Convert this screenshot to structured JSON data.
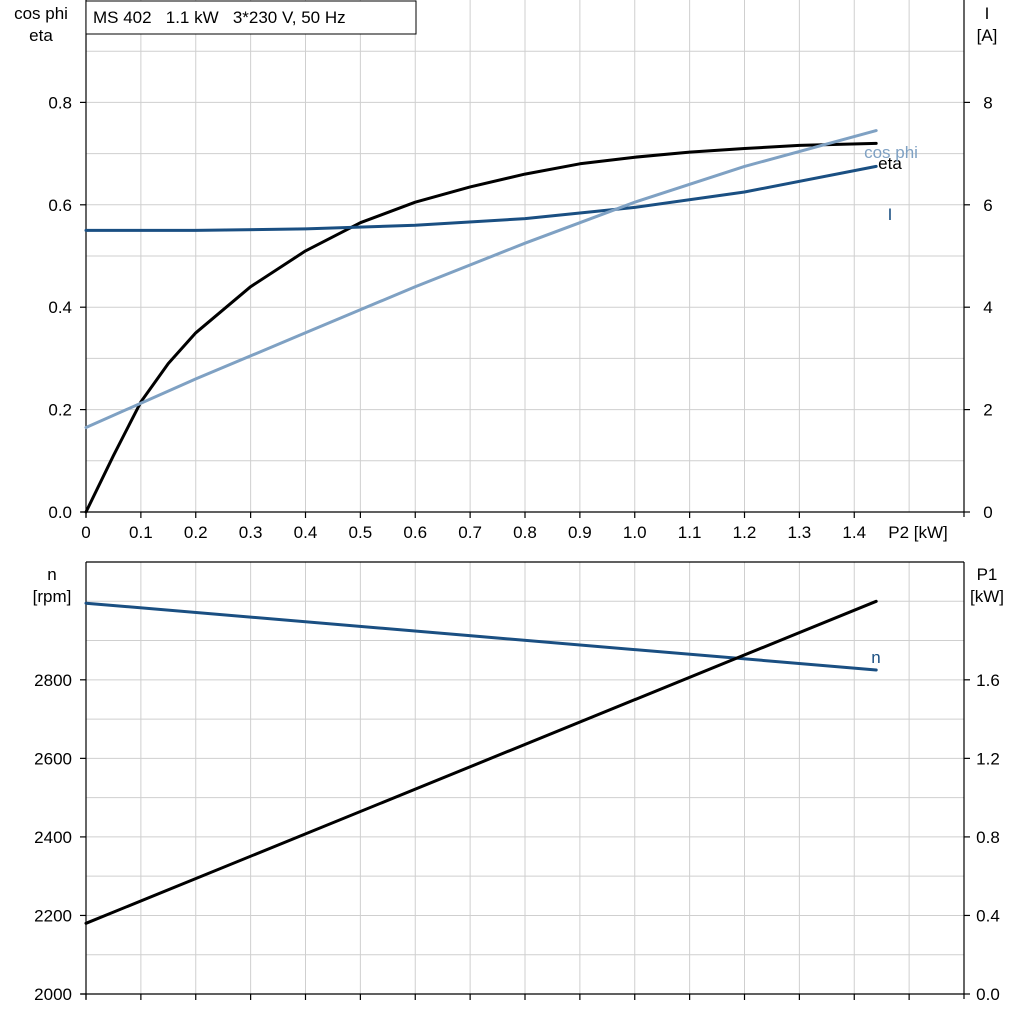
{
  "title_box": "MS 402   1.1 kW   3*230 V, 50 Hz",
  "colors": {
    "eta": "#000000",
    "I": "#1a4f82",
    "cos_phi": "#7fa1c3",
    "n": "#1a4f82",
    "P1": "#000000",
    "grid": "#cfcfcf"
  },
  "chart_data": [
    {
      "type": "line",
      "title": "MS 402   1.1 kW   3*230 V, 50 Hz",
      "xlabel": "P2 [kW]",
      "xlim": [
        0,
        1.6
      ],
      "x_ticks": [
        "0",
        "0.1",
        "0.2",
        "0.3",
        "0.4",
        "0.5",
        "0.6",
        "0.7",
        "0.8",
        "0.9",
        "1.0",
        "1.1",
        "1.2",
        "1.3",
        "1.4"
      ],
      "ylabel_left": [
        "cos phi",
        "eta"
      ],
      "ylim_left": [
        0,
        1.0
      ],
      "y_ticks_left": [
        "0.0",
        "0.2",
        "0.4",
        "0.6",
        "0.8"
      ],
      "ylabel_right": [
        "I",
        "[A]"
      ],
      "ylim_right": [
        0,
        10
      ],
      "y_ticks_right": [
        "0",
        "2",
        "4",
        "6",
        "8"
      ],
      "grid": true,
      "series": [
        {
          "name": "eta",
          "axis": "left",
          "x": [
            0,
            0.05,
            0.1,
            0.15,
            0.2,
            0.3,
            0.4,
            0.5,
            0.6,
            0.7,
            0.8,
            0.9,
            1.0,
            1.1,
            1.2,
            1.3,
            1.44
          ],
          "y": [
            0,
            0.11,
            0.215,
            0.29,
            0.35,
            0.44,
            0.51,
            0.565,
            0.605,
            0.635,
            0.66,
            0.68,
            0.693,
            0.703,
            0.71,
            0.716,
            0.72
          ]
        },
        {
          "name": "I",
          "axis": "right",
          "x": [
            0,
            0.2,
            0.4,
            0.6,
            0.8,
            1.0,
            1.2,
            1.44
          ],
          "y": [
            5.5,
            5.5,
            5.53,
            5.6,
            5.73,
            5.95,
            6.25,
            6.75
          ]
        },
        {
          "name": "cos phi",
          "axis": "left",
          "x": [
            0,
            0.2,
            0.4,
            0.6,
            0.8,
            1.0,
            1.2,
            1.44
          ],
          "y": [
            0.165,
            0.26,
            0.35,
            0.44,
            0.525,
            0.605,
            0.675,
            0.745
          ]
        }
      ]
    },
    {
      "type": "line",
      "xlim": [
        0,
        1.6
      ],
      "ylabel_left": [
        "n",
        "[rpm]"
      ],
      "ylim_left": [
        2000,
        3100
      ],
      "y_ticks_left": [
        "2000",
        "2200",
        "2400",
        "2600",
        "2800"
      ],
      "ylabel_right": [
        "P1",
        "[kW]"
      ],
      "ylim_right": [
        0,
        2.2
      ],
      "y_ticks_right": [
        "0.0",
        "0.4",
        "0.8",
        "1.2",
        "1.6"
      ],
      "grid": true,
      "series": [
        {
          "name": "n",
          "axis": "left",
          "x": [
            0,
            1.44
          ],
          "y": [
            2995,
            2825
          ]
        },
        {
          "axis": "right",
          "x": [
            0,
            1.44
          ],
          "y": [
            0.36,
            2.0
          ]
        }
      ]
    }
  ]
}
